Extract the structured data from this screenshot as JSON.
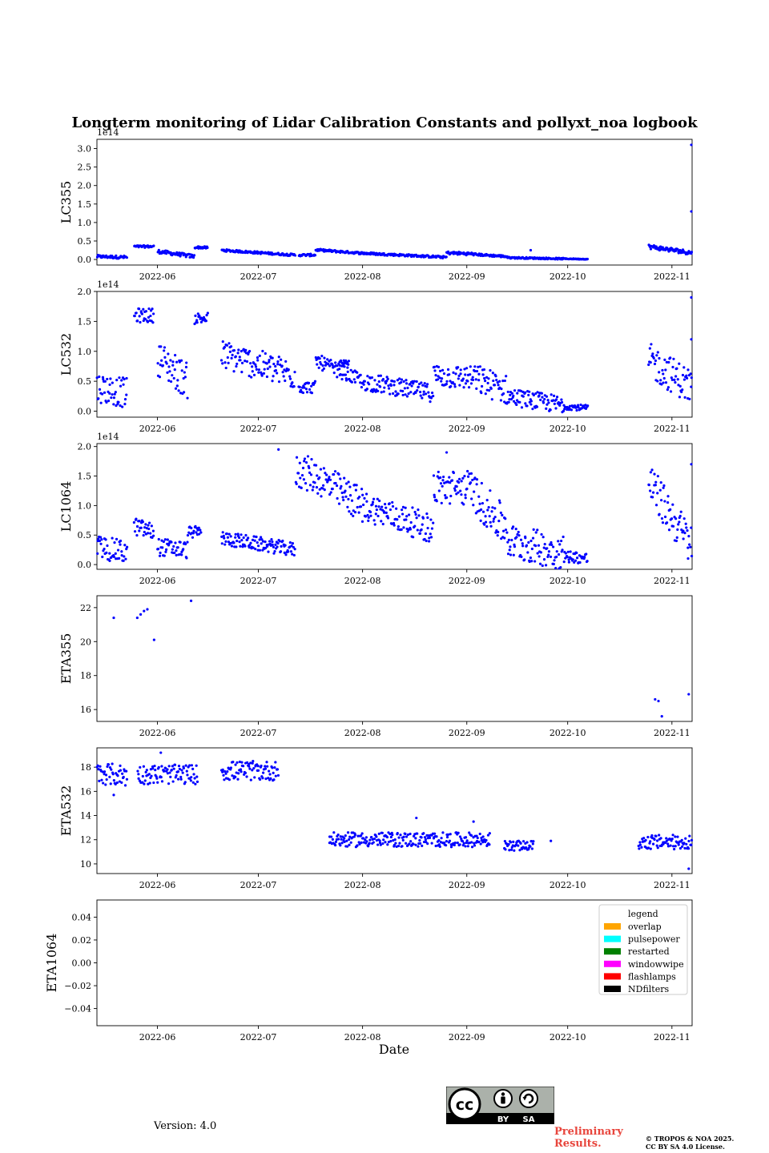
{
  "chart_data": [
    {
      "type": "scatter",
      "title": "Longterm monitoring of Lidar Calibration Constants and pollyxt_noa logbook",
      "ylabel": "LC355",
      "offset_text": "1e14",
      "x_range": [
        "2022-05-14",
        "2022-11-07"
      ],
      "ylim": [
        -0.15,
        3.25
      ],
      "yticks": [
        "0.0",
        "0.5",
        "1.0",
        "1.5",
        "2.0",
        "2.5",
        "3.0"
      ],
      "ytick_values": [
        0.0,
        0.5,
        1.0,
        1.5,
        2.0,
        2.5,
        3.0
      ],
      "xticks": [
        "2022-06",
        "2022-07",
        "2022-08",
        "2022-09",
        "2022-10",
        "2022-11"
      ],
      "series": [
        {
          "name": "LC355",
          "color": "#0000ff",
          "segments": [
            {
              "start": "2022-05-14",
              "end": "2022-05-23",
              "y0": 0.08,
              "y1": 0.06,
              "spread": 0.04
            },
            {
              "start": "2022-05-25",
              "end": "2022-05-31",
              "y0": 0.35,
              "y1": 0.35,
              "spread": 0.03
            },
            {
              "start": "2022-06-01",
              "end": "2022-06-12",
              "y0": 0.22,
              "y1": 0.08,
              "spread": 0.05
            },
            {
              "start": "2022-06-12",
              "end": "2022-06-16",
              "y0": 0.33,
              "y1": 0.32,
              "spread": 0.03
            },
            {
              "start": "2022-06-20",
              "end": "2022-07-12",
              "y0": 0.25,
              "y1": 0.12,
              "spread": 0.03
            },
            {
              "start": "2022-07-13",
              "end": "2022-07-18",
              "y0": 0.12,
              "y1": 0.12,
              "spread": 0.03
            },
            {
              "start": "2022-07-18",
              "end": "2022-08-01",
              "y0": 0.26,
              "y1": 0.17,
              "spread": 0.03
            },
            {
              "start": "2022-08-01",
              "end": "2022-08-26",
              "y0": 0.17,
              "y1": 0.06,
              "spread": 0.03
            },
            {
              "start": "2022-08-26",
              "end": "2022-09-03",
              "y0": 0.18,
              "y1": 0.15,
              "spread": 0.04
            },
            {
              "start": "2022-09-03",
              "end": "2022-09-13",
              "y0": 0.14,
              "y1": 0.08,
              "spread": 0.03
            },
            {
              "start": "2022-09-13",
              "end": "2022-09-30",
              "y0": 0.05,
              "y1": 0.02,
              "spread": 0.02
            },
            {
              "start": "2022-09-30",
              "end": "2022-10-07",
              "y0": 0.02,
              "y1": 0.01,
              "spread": 0.01
            },
            {
              "start": "2022-10-25",
              "end": "2022-11-07",
              "y0": 0.35,
              "y1": 0.18,
              "spread": 0.06
            }
          ]
        }
      ],
      "points": [
        {
          "x": "2022-11-07",
          "y": 3.1
        },
        {
          "x": "2022-11-07",
          "y": 1.3
        },
        {
          "x": "2022-09-20",
          "y": 0.25
        }
      ]
    },
    {
      "type": "scatter",
      "ylabel": "LC532",
      "offset_text": "1e14",
      "x_range": [
        "2022-05-14",
        "2022-11-07"
      ],
      "ylim": [
        -0.1,
        2.0
      ],
      "yticks": [
        "0.0",
        "0.5",
        "1.0",
        "1.5",
        "2.0"
      ],
      "ytick_values": [
        0.0,
        0.5,
        1.0,
        1.5,
        2.0
      ],
      "xticks": [
        "2022-06",
        "2022-07",
        "2022-08",
        "2022-09",
        "2022-10",
        "2022-11"
      ],
      "series": [
        {
          "name": "LC532",
          "color": "#0000ff",
          "segments": [
            {
              "start": "2022-05-14",
              "end": "2022-05-23",
              "y0": 0.4,
              "y1": 0.3,
              "spread": 0.25
            },
            {
              "start": "2022-05-25",
              "end": "2022-05-31",
              "y0": 1.6,
              "y1": 1.6,
              "spread": 0.12
            },
            {
              "start": "2022-06-01",
              "end": "2022-06-10",
              "y0": 0.9,
              "y1": 0.5,
              "spread": 0.3
            },
            {
              "start": "2022-06-12",
              "end": "2022-06-16",
              "y0": 1.55,
              "y1": 1.55,
              "spread": 0.1
            },
            {
              "start": "2022-06-20",
              "end": "2022-07-12",
              "y0": 0.95,
              "y1": 0.6,
              "spread": 0.25
            },
            {
              "start": "2022-07-13",
              "end": "2022-07-18",
              "y0": 0.4,
              "y1": 0.4,
              "spread": 0.1
            },
            {
              "start": "2022-07-18",
              "end": "2022-08-01",
              "y0": 0.85,
              "y1": 0.5,
              "spread": 0.12
            },
            {
              "start": "2022-07-25",
              "end": "2022-07-28",
              "y0": 0.8,
              "y1": 0.8,
              "spread": 0.05
            },
            {
              "start": "2022-08-01",
              "end": "2022-08-22",
              "y0": 0.5,
              "y1": 0.3,
              "spread": 0.15
            },
            {
              "start": "2022-08-22",
              "end": "2022-09-03",
              "y0": 0.6,
              "y1": 0.55,
              "spread": 0.2
            },
            {
              "start": "2022-09-03",
              "end": "2022-09-13",
              "y0": 0.55,
              "y1": 0.35,
              "spread": 0.25
            },
            {
              "start": "2022-09-13",
              "end": "2022-09-30",
              "y0": 0.25,
              "y1": 0.1,
              "spread": 0.15
            },
            {
              "start": "2022-09-30",
              "end": "2022-10-07",
              "y0": 0.08,
              "y1": 0.05,
              "spread": 0.05
            },
            {
              "start": "2022-10-25",
              "end": "2022-11-07",
              "y0": 0.85,
              "y1": 0.4,
              "spread": 0.3
            }
          ]
        }
      ],
      "points": [
        {
          "x": "2022-11-07",
          "y": 1.9
        },
        {
          "x": "2022-11-07",
          "y": 1.2
        }
      ]
    },
    {
      "type": "scatter",
      "ylabel": "LC1064",
      "offset_text": "1e14",
      "x_range": [
        "2022-05-14",
        "2022-11-07"
      ],
      "ylim": [
        -0.08,
        2.05
      ],
      "yticks": [
        "0.0",
        "0.5",
        "1.0",
        "1.5",
        "2.0"
      ],
      "ytick_values": [
        0.0,
        0.5,
        1.0,
        1.5,
        2.0
      ],
      "xticks": [
        "2022-06",
        "2022-07",
        "2022-08",
        "2022-09",
        "2022-10",
        "2022-11"
      ],
      "series": [
        {
          "name": "LC1064",
          "color": "#0000ff",
          "segments": [
            {
              "start": "2022-05-14",
              "end": "2022-05-23",
              "y0": 0.3,
              "y1": 0.2,
              "spread": 0.2
            },
            {
              "start": "2022-05-25",
              "end": "2022-05-31",
              "y0": 0.65,
              "y1": 0.55,
              "spread": 0.15
            },
            {
              "start": "2022-06-01",
              "end": "2022-06-10",
              "y0": 0.3,
              "y1": 0.25,
              "spread": 0.15
            },
            {
              "start": "2022-06-10",
              "end": "2022-06-14",
              "y0": 0.55,
              "y1": 0.55,
              "spread": 0.1
            },
            {
              "start": "2022-06-20",
              "end": "2022-07-12",
              "y0": 0.45,
              "y1": 0.25,
              "spread": 0.12
            },
            {
              "start": "2022-07-12",
              "end": "2022-07-18",
              "y0": 1.6,
              "y1": 1.5,
              "spread": 0.3
            },
            {
              "start": "2022-07-18",
              "end": "2022-08-01",
              "y0": 1.5,
              "y1": 1.0,
              "spread": 0.3
            },
            {
              "start": "2022-08-01",
              "end": "2022-08-22",
              "y0": 1.0,
              "y1": 0.6,
              "spread": 0.25
            },
            {
              "start": "2022-08-22",
              "end": "2022-09-03",
              "y0": 1.3,
              "y1": 1.3,
              "spread": 0.3
            },
            {
              "start": "2022-09-03",
              "end": "2022-09-13",
              "y0": 1.2,
              "y1": 0.6,
              "spread": 0.35
            },
            {
              "start": "2022-09-13",
              "end": "2022-09-30",
              "y0": 0.4,
              "y1": 0.2,
              "spread": 0.3
            },
            {
              "start": "2022-09-30",
              "end": "2022-10-07",
              "y0": 0.15,
              "y1": 0.1,
              "spread": 0.1
            },
            {
              "start": "2022-10-25",
              "end": "2022-11-07",
              "y0": 1.4,
              "y1": 0.3,
              "spread": 0.35
            }
          ]
        }
      ],
      "points": [
        {
          "x": "2022-11-07",
          "y": 1.7
        },
        {
          "x": "2022-07-07",
          "y": 1.95
        },
        {
          "x": "2022-08-26",
          "y": 1.9
        }
      ]
    },
    {
      "type": "scatter",
      "ylabel": "ETA355",
      "x_range": [
        "2022-05-14",
        "2022-11-07"
      ],
      "ylim": [
        15.3,
        22.7
      ],
      "yticks": [
        "16",
        "18",
        "20",
        "22"
      ],
      "ytick_values": [
        16,
        18,
        20,
        22
      ],
      "xticks": [
        "2022-06",
        "2022-07",
        "2022-08",
        "2022-09",
        "2022-10",
        "2022-11"
      ],
      "series": [
        {
          "name": "ETA355",
          "color": "#0000ff",
          "segments": []
        }
      ],
      "points": [
        {
          "x": "2022-05-19",
          "y": 21.4
        },
        {
          "x": "2022-05-26",
          "y": 21.4
        },
        {
          "x": "2022-05-27",
          "y": 21.6
        },
        {
          "x": "2022-05-28",
          "y": 21.8
        },
        {
          "x": "2022-05-29",
          "y": 21.9
        },
        {
          "x": "2022-05-31",
          "y": 20.1
        },
        {
          "x": "2022-06-11",
          "y": 22.4
        },
        {
          "x": "2022-10-27",
          "y": 16.6
        },
        {
          "x": "2022-10-28",
          "y": 16.5
        },
        {
          "x": "2022-10-29",
          "y": 15.6
        },
        {
          "x": "2022-11-06",
          "y": 16.9
        }
      ]
    },
    {
      "type": "scatter",
      "ylabel": "ETA532",
      "x_range": [
        "2022-05-14",
        "2022-11-07"
      ],
      "ylim": [
        9.2,
        19.6
      ],
      "yticks": [
        "10",
        "12",
        "14",
        "16",
        "18"
      ],
      "ytick_values": [
        10,
        12,
        14,
        16,
        18
      ],
      "xticks": [
        "2022-06",
        "2022-07",
        "2022-08",
        "2022-09",
        "2022-10",
        "2022-11"
      ],
      "series": [
        {
          "name": "ETA532",
          "color": "#0000ff",
          "segments": [
            {
              "start": "2022-05-14",
              "end": "2022-05-23",
              "y0": 17.5,
              "y1": 17.3,
              "spread": 0.9
            },
            {
              "start": "2022-05-26",
              "end": "2022-06-13",
              "y0": 17.4,
              "y1": 17.4,
              "spread": 0.8
            },
            {
              "start": "2022-06-20",
              "end": "2022-07-07",
              "y0": 17.7,
              "y1": 17.7,
              "spread": 0.8
            },
            {
              "start": "2022-07-22",
              "end": "2022-09-08",
              "y0": 12.0,
              "y1": 12.0,
              "spread": 0.6
            },
            {
              "start": "2022-09-12",
              "end": "2022-09-21",
              "y0": 11.5,
              "y1": 11.5,
              "spread": 0.4
            },
            {
              "start": "2022-10-22",
              "end": "2022-11-07",
              "y0": 11.8,
              "y1": 11.8,
              "spread": 0.6
            }
          ]
        }
      ],
      "points": [
        {
          "x": "2022-06-02",
          "y": 19.2
        },
        {
          "x": "2022-05-19",
          "y": 15.7
        },
        {
          "x": "2022-08-17",
          "y": 13.8
        },
        {
          "x": "2022-09-03",
          "y": 13.5
        },
        {
          "x": "2022-11-06",
          "y": 9.6
        },
        {
          "x": "2022-09-26",
          "y": 11.9
        }
      ]
    },
    {
      "type": "scatter",
      "ylabel": "ETA1064",
      "xlabel": "Date",
      "x_range": [
        "2022-05-14",
        "2022-11-07"
      ],
      "ylim": [
        -0.055,
        0.055
      ],
      "yticks": [
        "−0.04",
        "−0.02",
        "0.00",
        "0.02",
        "0.04"
      ],
      "ytick_values": [
        -0.04,
        -0.02,
        0.0,
        0.02,
        0.04
      ],
      "xticks": [
        "2022-06",
        "2022-07",
        "2022-08",
        "2022-09",
        "2022-10",
        "2022-11"
      ],
      "series": [],
      "points": [],
      "legend": {
        "title": "legend",
        "position": "upper right",
        "entries": [
          {
            "label": "overlap",
            "color": "#ffa500"
          },
          {
            "label": "pulsepower",
            "color": "#00ffff"
          },
          {
            "label": "restarted",
            "color": "#008000"
          },
          {
            "label": "windowwipe",
            "color": "#ff00ff"
          },
          {
            "label": "flashlamps",
            "color": "#ff0000"
          },
          {
            "label": "NDfilters",
            "color": "#000000"
          }
        ]
      }
    }
  ],
  "footer": {
    "version": "Version: 4.0",
    "preliminary_line1": "Preliminary",
    "preliminary_line2": "Results.",
    "copyright_line1": "© TROPOS & NOA 2025.",
    "copyright_line2": "CC BY SA 4.0 License.",
    "badge_by": "BY",
    "badge_sa": "SA",
    "badge_cc": "cc"
  }
}
